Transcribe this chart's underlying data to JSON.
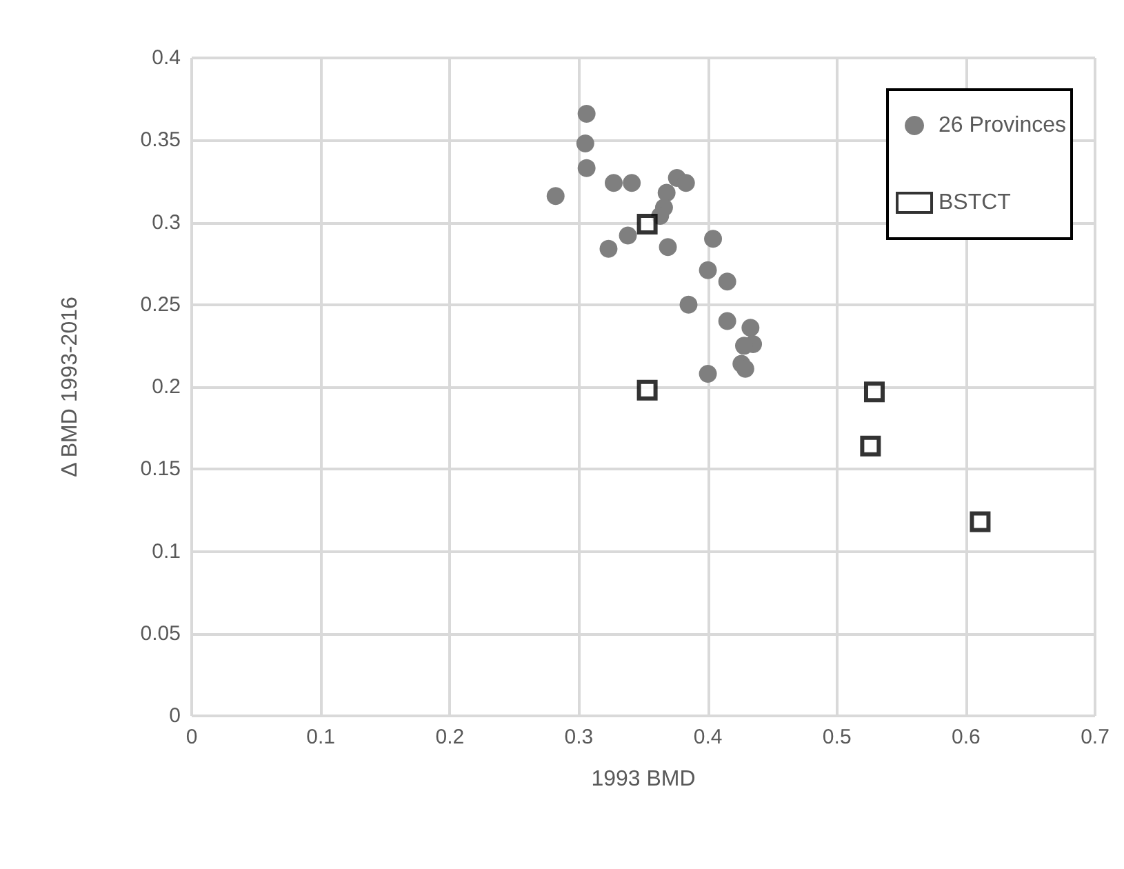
{
  "chart_data": {
    "type": "scatter",
    "xlabel": "1993 BMD",
    "ylabel": "Δ BMD 1993-2016",
    "xlim": [
      0,
      0.7
    ],
    "xticks": [
      0,
      0.1,
      0.2,
      0.3,
      0.4,
      0.5,
      0.6,
      0.7
    ],
    "ylim": [
      0,
      0.4
    ],
    "yticks": [
      0,
      0.05,
      0.1,
      0.15,
      0.2,
      0.25,
      0.3,
      0.35,
      0.4
    ],
    "grid": true,
    "legend": "top right",
    "series": [
      {
        "name": "26 Provinces",
        "color": "#7f7f7f",
        "marker": "circle",
        "x": [
          0.306,
          0.305,
          0.306,
          0.327,
          0.341,
          0.282,
          0.376,
          0.383,
          0.368,
          0.366,
          0.363,
          0.338,
          0.323,
          0.369,
          0.404,
          0.4,
          0.415,
          0.385,
          0.415,
          0.433,
          0.435,
          0.428,
          0.426,
          0.429,
          0.4
        ],
        "values": [
          0.366,
          0.348,
          0.333,
          0.324,
          0.324,
          0.316,
          0.327,
          0.324,
          0.318,
          0.309,
          0.304,
          0.292,
          0.284,
          0.285,
          0.29,
          0.271,
          0.264,
          0.25,
          0.24,
          0.236,
          0.226,
          0.225,
          0.214,
          0.211,
          0.208
        ]
      },
      {
        "name": "BSTCT",
        "color": "#000000",
        "marker": "square",
        "x": [
          0.353,
          0.353,
          0.529,
          0.526,
          0.611
        ],
        "values": [
          0.299,
          0.198,
          0.197,
          0.164,
          0.118
        ]
      }
    ]
  }
}
